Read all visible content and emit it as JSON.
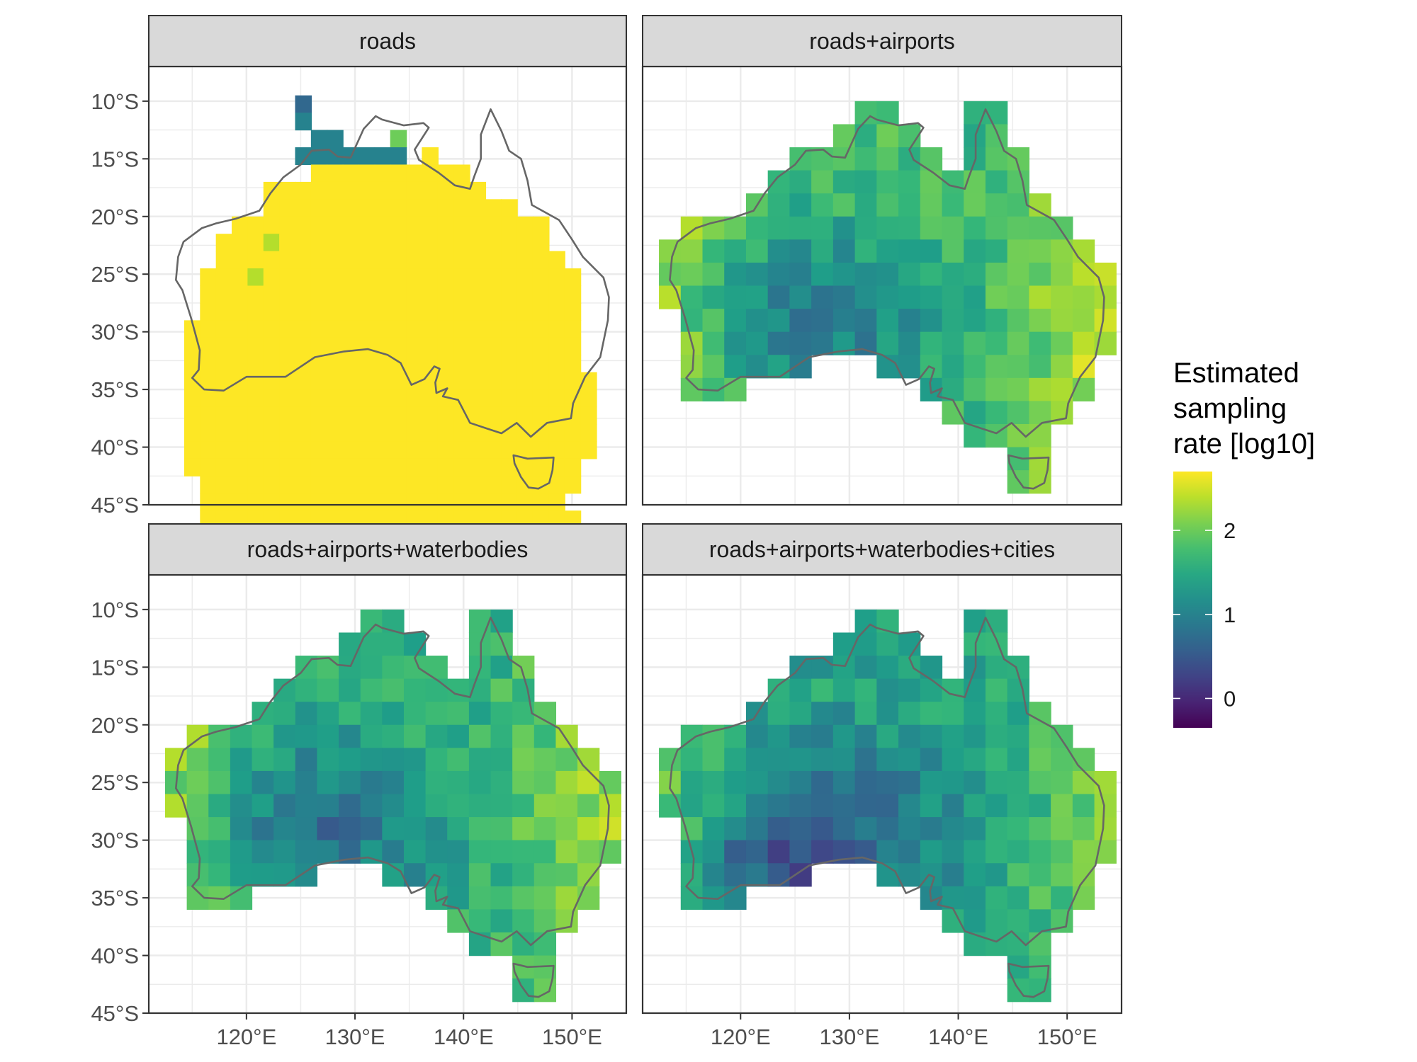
{
  "chart_data": {
    "type": "heatmap",
    "facets": [
      {
        "name": "roads",
        "rows": [
          "........3....................",
          "........4....................",
          ".........44...7..............",
          "........4444444.9............",
          ".........9999999999..........",
          "......99999999999999.........",
          "......9999999999999999.......",
          "....99999999999999999999.....",
          "...999899999999999999999.....",
          "...9999999999999999999999....",
          "..999899999999999999999999...",
          "..999999999999999999999999...",
          "..999999999999999999999999...",
          ".9999999999999999999999999...",
          ".9999999999999999999999999...",
          ".9999999999999999999999999...",
          ".99999999999999999999999999..",
          ".99999999999999999999999999..",
          ".99999999999999999999999999..",
          ".99999999999999999999999999..",
          ".99999999999999999999999999..",
          ".9999999999999999999999999...",
          "..999999999999999999999999...",
          "..99999999999999999999999....",
          "..999999999999999999999999...",
          "..999999999999999999999999..."
        ]
      },
      {
        "name": "roads+airports",
        "rows": []
      },
      {
        "name": "roads+airports+waterbodies",
        "rows": []
      },
      {
        "name": "roads+airports+waterbodies+cities",
        "rows": []
      }
    ],
    "grid_lon": [
      113,
      115,
      117,
      119,
      121,
      123,
      125,
      127,
      129,
      131,
      133,
      135,
      137,
      139,
      141,
      143,
      145,
      147,
      149,
      151,
      153
    ],
    "grid_lat": [
      -21,
      -23,
      -25,
      -27,
      -29,
      -31,
      -33,
      -35,
      -37,
      -39,
      -41,
      -43,
      -11,
      -13,
      -15,
      -17,
      -19
    ],
    "x_ticks": [
      "120°E",
      "130°E",
      "140°E",
      "150°E"
    ],
    "x_tick_values": [
      120,
      130,
      140,
      150
    ],
    "y_ticks": [
      "10°S",
      "15°S",
      "20°S",
      "25°S",
      "30°S",
      "35°S",
      "40°S",
      "45°S"
    ],
    "y_tick_values": [
      -10,
      -15,
      -20,
      -25,
      -30,
      -35,
      -40,
      -45
    ],
    "xlim": [
      111,
      155
    ],
    "ylim": [
      -45,
      -7
    ],
    "legend": {
      "title_lines": [
        "Estimated",
        "sampling",
        "rate [log10]"
      ],
      "breaks": [
        0,
        1,
        2
      ],
      "break_labels": [
        "0",
        "1",
        "2"
      ],
      "range": [
        -0.35,
        2.7
      ],
      "colormap": "viridis",
      "position": "right"
    },
    "outline_color": "#666666",
    "strip_fill": "#d9d9d9",
    "grid": true
  }
}
